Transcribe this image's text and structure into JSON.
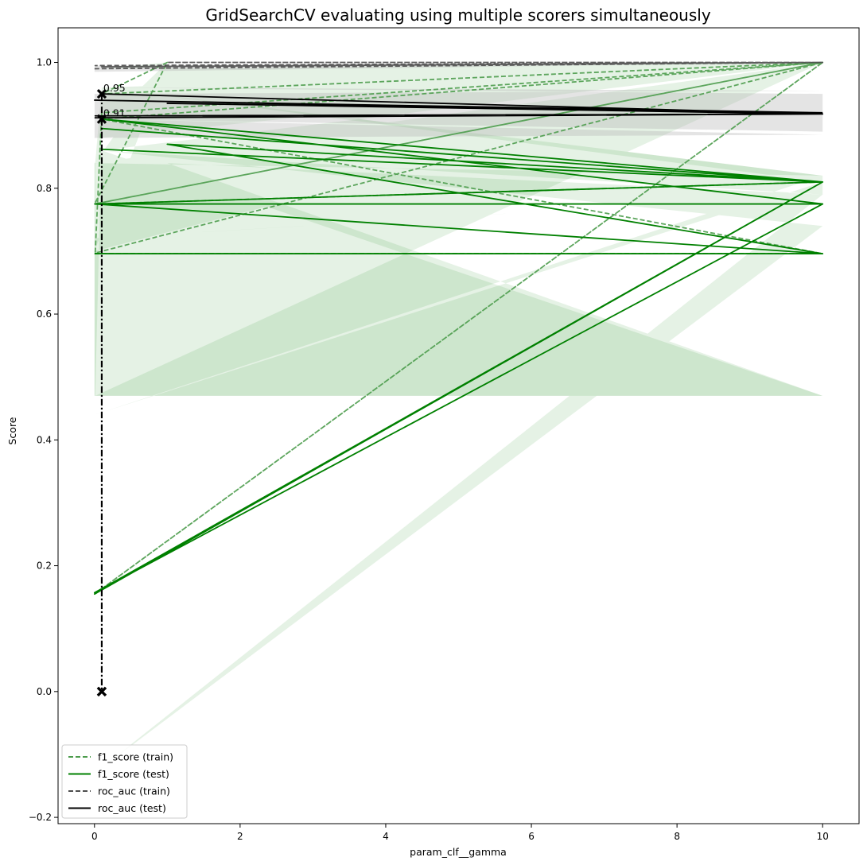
{
  "chart_data": {
    "type": "line",
    "title": "GridSearchCV evaluating using multiple scorers simultaneously",
    "xlabel": "param_clf__gamma",
    "ylabel": "Score",
    "xlim": [
      -0.5,
      10.5
    ],
    "ylim": [
      -0.21,
      1.055
    ],
    "xticks": [
      "0",
      "2",
      "4",
      "6",
      "8",
      "10"
    ],
    "yticks": [
      "−0.2",
      "0.0",
      "0.2",
      "0.4",
      "0.6",
      "0.8",
      "1.0"
    ],
    "grid": false,
    "legend_position": "lower-left",
    "legend": [
      {
        "label": "f1_score (train)",
        "color": "#4c9c4c",
        "style": "dashed"
      },
      {
        "label": "f1_score (test)",
        "color": "#008000",
        "style": "solid"
      },
      {
        "label": "roc_auc (train)",
        "color": "#4d4d4d",
        "style": "dashed"
      },
      {
        "label": "roc_auc (test)",
        "color": "#000000",
        "style": "solid"
      }
    ],
    "series": [
      {
        "name": "f1_score (train)",
        "color": "#4c9c4c",
        "style": "dashed",
        "x": [
          0.001,
          10,
          0.1,
          10,
          0.001,
          1,
          0.1,
          10,
          0.001,
          10,
          0.01,
          0.1,
          10,
          0.001,
          10,
          0.01
        ],
        "y": [
          0.696,
          0.696,
          0.91,
          1.0,
          0.775,
          1.0,
          0.95,
          1.0,
          0.155,
          1.0,
          0.697,
          0.92,
          1.0,
          0.775,
          0.81,
          0.775
        ],
        "band_low": [
          0.47,
          0.47,
          0.86,
          1.0,
          0.7,
          1.0,
          0.9,
          1.0,
          -0.1,
          1.0,
          0.47,
          0.88,
          1.0,
          0.72,
          0.79,
          0.72
        ],
        "band_high": [
          0.84,
          0.82,
          0.96,
          1.0,
          0.84,
          1.0,
          0.99,
          1.0,
          0.26,
          1.0,
          0.84,
          0.96,
          1.0,
          0.84,
          0.82,
          0.84
        ]
      },
      {
        "name": "f1_score (test)",
        "color": "#008000",
        "style": "solid",
        "x": [
          0.001,
          10,
          0.01,
          10,
          0.1,
          10,
          0.001,
          10,
          0.01,
          10,
          0.1,
          10,
          0.001,
          10,
          0.01,
          10,
          1,
          10,
          0.1,
          10
        ],
        "y": [
          0.696,
          0.696,
          0.775,
          0.775,
          0.91,
          0.81,
          0.155,
          0.81,
          0.775,
          0.81,
          0.862,
          0.81,
          0.157,
          0.775,
          0.775,
          0.696,
          0.87,
          0.81,
          0.895,
          0.81
        ],
        "band_low": [
          0.47,
          0.47,
          0.74,
          0.74,
          0.86,
          0.79,
          -0.13,
          0.79,
          0.74,
          0.79,
          0.82,
          0.79,
          -0.13,
          0.74,
          0.74,
          0.47,
          0.84,
          0.79,
          0.86,
          0.79
        ],
        "band_high": [
          0.84,
          0.82,
          0.81,
          0.81,
          0.96,
          0.82,
          0.44,
          0.82,
          0.81,
          0.82,
          0.9,
          0.82,
          0.44,
          0.81,
          0.81,
          0.82,
          0.9,
          0.82,
          0.93,
          0.82
        ]
      },
      {
        "name": "roc_auc (train)",
        "color": "#4d4d4d",
        "style": "dashed",
        "x": [
          0.001,
          10,
          0.01,
          10,
          0.1,
          10,
          1,
          10
        ],
        "y": [
          0.99,
          1.0,
          0.995,
          1.0,
          0.993,
          1.0,
          1.0,
          1.0
        ],
        "band_low": [
          0.985,
          1.0,
          0.99,
          1.0,
          0.99,
          1.0,
          1.0,
          1.0
        ],
        "band_high": [
          0.995,
          1.0,
          1.0,
          1.0,
          1.0,
          1.0,
          1.0,
          1.0
        ]
      },
      {
        "name": "roc_auc (test)",
        "color": "#000000",
        "style": "solid",
        "x": [
          0.001,
          10,
          0.01,
          10,
          0.1,
          10,
          1,
          10,
          0.001,
          10
        ],
        "y": [
          0.912,
          0.918,
          0.915,
          0.918,
          0.95,
          0.918,
          0.935,
          0.918,
          0.94,
          0.92
        ],
        "band_low": [
          0.88,
          0.885,
          0.88,
          0.885,
          0.92,
          0.885,
          0.9,
          0.885,
          0.91,
          0.89
        ],
        "band_high": [
          0.95,
          0.955,
          0.95,
          0.955,
          0.97,
          0.955,
          0.96,
          0.955,
          0.96,
          0.95
        ]
      }
    ],
    "best_markers": [
      {
        "scorer": "roc_auc",
        "x": 0.1,
        "y": 0.95,
        "label": "0.95",
        "color": "#000000"
      },
      {
        "scorer": "f1_score",
        "x": 0.1,
        "y": 0.91,
        "label": "0.91",
        "color": "#000000"
      }
    ]
  }
}
